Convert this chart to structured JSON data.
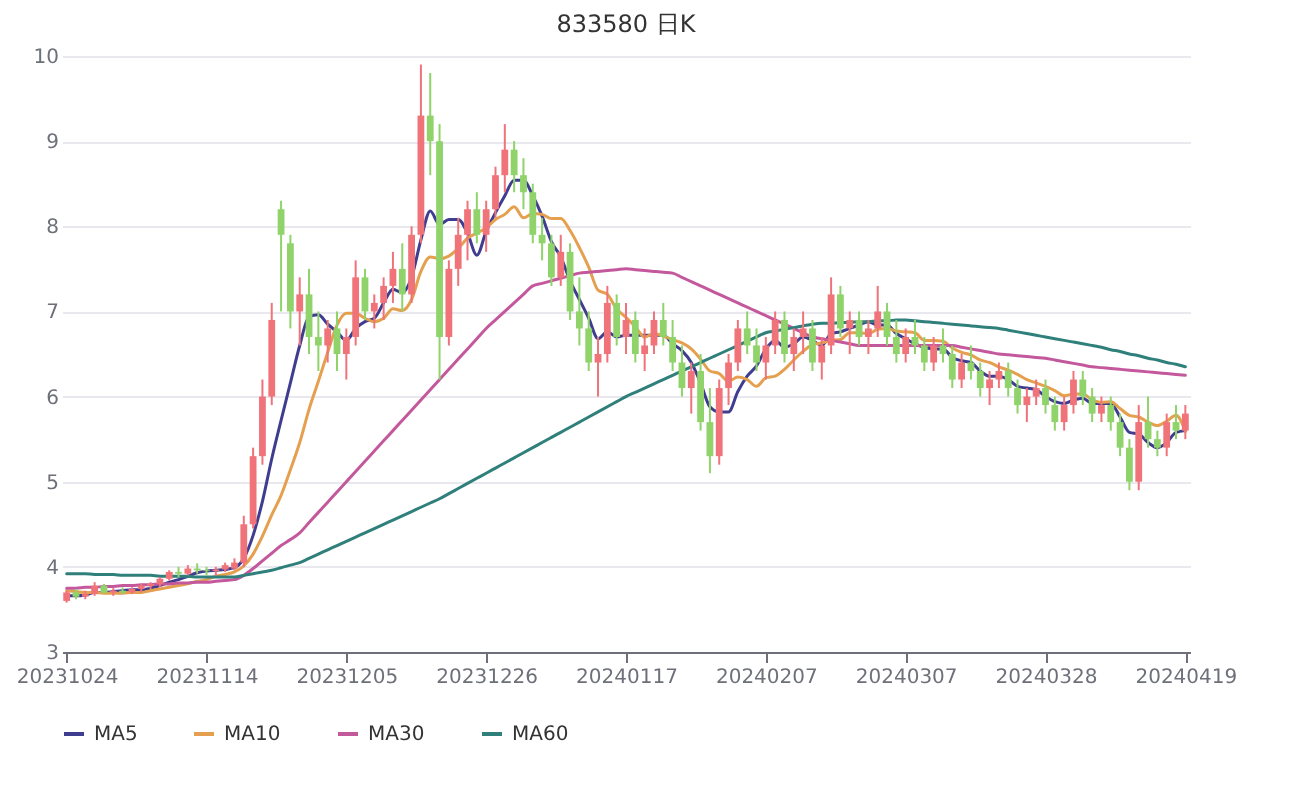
{
  "chart_data": {
    "type": "candlestick",
    "title": "833580  日K",
    "categories": [
      "20231024",
      null,
      null,
      null,
      null,
      null,
      null,
      null,
      null,
      null,
      null,
      null,
      null,
      null,
      null,
      "20231114",
      null,
      null,
      null,
      null,
      null,
      null,
      null,
      null,
      null,
      null,
      null,
      null,
      null,
      null,
      "20231205",
      null,
      null,
      null,
      null,
      null,
      null,
      null,
      null,
      null,
      null,
      null,
      null,
      null,
      null,
      "20231226",
      null,
      null,
      null,
      null,
      null,
      null,
      null,
      null,
      null,
      null,
      null,
      null,
      null,
      null,
      "20240117",
      null,
      null,
      null,
      null,
      null,
      null,
      null,
      null,
      null,
      null,
      null,
      null,
      null,
      null,
      "20240207",
      null,
      null,
      null,
      null,
      null,
      null,
      null,
      null,
      null,
      null,
      null,
      null,
      null,
      null,
      "20240307",
      null,
      null,
      null,
      null,
      null,
      null,
      null,
      null,
      null,
      null,
      null,
      null,
      null,
      null,
      "20240328",
      null,
      null,
      null,
      null,
      null,
      null,
      null,
      null,
      null,
      null,
      null,
      null,
      null,
      null,
      "20240419"
    ],
    "ohlc": [
      [
        3.6,
        3.72,
        3.58,
        3.7
      ],
      [
        3.7,
        3.74,
        3.62,
        3.65
      ],
      [
        3.65,
        3.72,
        3.62,
        3.68
      ],
      [
        3.68,
        3.82,
        3.66,
        3.78
      ],
      [
        3.78,
        3.8,
        3.68,
        3.7
      ],
      [
        3.7,
        3.75,
        3.66,
        3.72
      ],
      [
        3.72,
        3.76,
        3.68,
        3.7
      ],
      [
        3.7,
        3.76,
        3.68,
        3.74
      ],
      [
        3.74,
        3.8,
        3.7,
        3.78
      ],
      [
        3.78,
        3.82,
        3.74,
        3.8
      ],
      [
        3.8,
        3.88,
        3.76,
        3.86
      ],
      [
        3.86,
        3.96,
        3.84,
        3.94
      ],
      [
        3.94,
        4.0,
        3.88,
        3.92
      ],
      [
        3.92,
        4.02,
        3.9,
        3.98
      ],
      [
        3.98,
        4.04,
        3.92,
        3.96
      ],
      [
        3.96,
        4.0,
        3.9,
        3.95
      ],
      [
        3.95,
        4.0,
        3.9,
        3.97
      ],
      [
        3.97,
        4.05,
        3.94,
        4.02
      ],
      [
        3.98,
        4.1,
        3.96,
        4.05
      ],
      [
        4.05,
        4.6,
        4.0,
        4.5
      ],
      [
        4.5,
        5.4,
        4.45,
        5.3
      ],
      [
        5.3,
        6.2,
        5.2,
        6.0
      ],
      [
        6.0,
        7.1,
        5.9,
        6.9
      ],
      [
        8.2,
        8.3,
        7.0,
        7.9
      ],
      [
        7.8,
        7.9,
        6.8,
        7.0
      ],
      [
        7.0,
        7.4,
        6.6,
        7.2
      ],
      [
        7.2,
        7.5,
        6.5,
        6.7
      ],
      [
        6.7,
        7.0,
        6.3,
        6.6
      ],
      [
        6.6,
        6.9,
        6.4,
        6.8
      ],
      [
        6.8,
        7.0,
        6.3,
        6.5
      ],
      [
        6.5,
        6.8,
        6.2,
        6.7
      ],
      [
        6.7,
        7.6,
        6.6,
        7.4
      ],
      [
        7.4,
        7.5,
        6.9,
        7.0
      ],
      [
        7.0,
        7.2,
        6.8,
        7.1
      ],
      [
        7.1,
        7.4,
        6.9,
        7.3
      ],
      [
        7.3,
        7.7,
        7.1,
        7.5
      ],
      [
        7.5,
        7.8,
        7.0,
        7.2
      ],
      [
        7.2,
        8.0,
        7.1,
        7.9
      ],
      [
        7.9,
        9.9,
        7.8,
        9.3
      ],
      [
        9.3,
        9.8,
        8.6,
        9.0
      ],
      [
        9.0,
        9.2,
        6.2,
        6.7
      ],
      [
        6.7,
        7.6,
        6.6,
        7.5
      ],
      [
        7.5,
        8.1,
        7.3,
        7.9
      ],
      [
        7.9,
        8.3,
        7.6,
        8.2
      ],
      [
        8.2,
        8.4,
        7.8,
        7.9
      ],
      [
        7.9,
        8.3,
        7.7,
        8.2
      ],
      [
        8.2,
        8.7,
        8.1,
        8.6
      ],
      [
        8.6,
        9.2,
        8.4,
        8.9
      ],
      [
        8.9,
        9.0,
        8.4,
        8.6
      ],
      [
        8.6,
        8.8,
        8.2,
        8.4
      ],
      [
        8.4,
        8.5,
        7.8,
        7.9
      ],
      [
        7.9,
        8.1,
        7.6,
        7.8
      ],
      [
        7.8,
        7.9,
        7.3,
        7.4
      ],
      [
        7.4,
        7.9,
        7.3,
        7.7
      ],
      [
        7.7,
        7.8,
        6.9,
        7.0
      ],
      [
        7.0,
        7.4,
        6.6,
        6.8
      ],
      [
        6.8,
        7.0,
        6.3,
        6.4
      ],
      [
        6.4,
        6.7,
        6.0,
        6.5
      ],
      [
        6.5,
        7.3,
        6.4,
        7.1
      ],
      [
        7.1,
        7.2,
        6.6,
        6.7
      ],
      [
        6.7,
        7.1,
        6.5,
        6.9
      ],
      [
        6.9,
        7.0,
        6.4,
        6.5
      ],
      [
        6.5,
        6.8,
        6.3,
        6.6
      ],
      [
        6.6,
        7.0,
        6.5,
        6.9
      ],
      [
        6.9,
        7.1,
        6.6,
        6.7
      ],
      [
        6.7,
        6.9,
        6.3,
        6.4
      ],
      [
        6.4,
        6.6,
        6.0,
        6.1
      ],
      [
        6.1,
        6.4,
        5.8,
        6.3
      ],
      [
        6.3,
        6.5,
        5.6,
        5.7
      ],
      [
        5.7,
        6.1,
        5.1,
        5.3
      ],
      [
        5.3,
        6.2,
        5.2,
        6.1
      ],
      [
        6.1,
        6.5,
        5.9,
        6.4
      ],
      [
        6.4,
        6.9,
        6.3,
        6.8
      ],
      [
        6.8,
        7.0,
        6.5,
        6.6
      ],
      [
        6.6,
        6.8,
        6.3,
        6.4
      ],
      [
        6.4,
        6.7,
        6.2,
        6.6
      ],
      [
        6.6,
        7.0,
        6.5,
        6.9
      ],
      [
        6.9,
        7.0,
        6.4,
        6.5
      ],
      [
        6.5,
        6.8,
        6.3,
        6.7
      ],
      [
        6.7,
        7.0,
        6.5,
        6.8
      ],
      [
        6.8,
        6.9,
        6.3,
        6.4
      ],
      [
        6.4,
        6.7,
        6.2,
        6.6
      ],
      [
        6.6,
        7.4,
        6.5,
        7.2
      ],
      [
        7.2,
        7.3,
        6.7,
        6.8
      ],
      [
        6.8,
        7.0,
        6.5,
        6.9
      ],
      [
        6.9,
        7.0,
        6.6,
        6.7
      ],
      [
        6.7,
        6.9,
        6.5,
        6.8
      ],
      [
        6.8,
        7.3,
        6.7,
        7.0
      ],
      [
        7.0,
        7.1,
        6.6,
        6.7
      ],
      [
        6.7,
        6.9,
        6.4,
        6.5
      ],
      [
        6.5,
        6.8,
        6.4,
        6.7
      ],
      [
        6.7,
        6.9,
        6.5,
        6.6
      ],
      [
        6.6,
        6.7,
        6.3,
        6.4
      ],
      [
        6.4,
        6.7,
        6.3,
        6.6
      ],
      [
        6.6,
        6.8,
        6.4,
        6.5
      ],
      [
        6.5,
        6.6,
        6.1,
        6.2
      ],
      [
        6.2,
        6.5,
        6.1,
        6.4
      ],
      [
        6.4,
        6.6,
        6.2,
        6.3
      ],
      [
        6.3,
        6.4,
        6.0,
        6.1
      ],
      [
        6.1,
        6.3,
        5.9,
        6.2
      ],
      [
        6.2,
        6.4,
        6.1,
        6.3
      ],
      [
        6.3,
        6.4,
        6.0,
        6.1
      ],
      [
        6.1,
        6.2,
        5.8,
        5.9
      ],
      [
        5.9,
        6.1,
        5.7,
        6.0
      ],
      [
        6.0,
        6.2,
        5.9,
        6.1
      ],
      [
        6.1,
        6.2,
        5.8,
        5.9
      ],
      [
        5.9,
        6.0,
        5.6,
        5.7
      ],
      [
        5.7,
        6.0,
        5.6,
        5.9
      ],
      [
        5.9,
        6.3,
        5.8,
        6.2
      ],
      [
        6.2,
        6.3,
        5.9,
        6.0
      ],
      [
        6.0,
        6.1,
        5.7,
        5.8
      ],
      [
        5.8,
        6.0,
        5.7,
        5.9
      ],
      [
        5.9,
        6.0,
        5.6,
        5.7
      ],
      [
        5.7,
        5.8,
        5.3,
        5.4
      ],
      [
        5.4,
        5.5,
        4.9,
        5.0
      ],
      [
        5.0,
        5.9,
        4.9,
        5.7
      ],
      [
        5.7,
        6.0,
        5.4,
        5.5
      ],
      [
        5.5,
        5.6,
        5.3,
        5.4
      ],
      [
        5.4,
        5.8,
        5.3,
        5.7
      ],
      [
        5.7,
        5.9,
        5.5,
        5.6
      ],
      [
        5.6,
        5.9,
        5.5,
        5.8
      ]
    ],
    "colors": [
      "#f0737a",
      "#8fd36a",
      "#f0737a",
      "#f0737a",
      "#8fd36a",
      "#f0737a",
      "#8fd36a",
      "#f0737a",
      "#f0737a",
      "#f0737a",
      "#f0737a",
      "#f0737a",
      "#8fd36a",
      "#f0737a",
      "#8fd36a",
      "#8fd36a",
      "#f0737a",
      "#f0737a",
      "#f0737a",
      "#f0737a",
      "#f0737a",
      "#f0737a",
      "#f0737a",
      "#8fd36a",
      "#8fd36a",
      "#f0737a",
      "#8fd36a",
      "#8fd36a",
      "#f0737a",
      "#8fd36a",
      "#f0737a",
      "#f0737a",
      "#8fd36a",
      "#f0737a",
      "#f0737a",
      "#f0737a",
      "#8fd36a",
      "#f0737a",
      "#f0737a",
      "#8fd36a",
      "#8fd36a",
      "#f0737a",
      "#f0737a",
      "#f0737a",
      "#8fd36a",
      "#f0737a",
      "#f0737a",
      "#f0737a",
      "#8fd36a",
      "#8fd36a",
      "#8fd36a",
      "#8fd36a",
      "#8fd36a",
      "#f0737a",
      "#8fd36a",
      "#8fd36a",
      "#8fd36a",
      "#f0737a",
      "#f0737a",
      "#8fd36a",
      "#f0737a",
      "#8fd36a",
      "#f0737a",
      "#f0737a",
      "#8fd36a",
      "#8fd36a",
      "#8fd36a",
      "#f0737a",
      "#8fd36a",
      "#8fd36a",
      "#f0737a",
      "#f0737a",
      "#f0737a",
      "#8fd36a",
      "#8fd36a",
      "#f0737a",
      "#f0737a",
      "#8fd36a",
      "#f0737a",
      "#f0737a",
      "#8fd36a",
      "#f0737a",
      "#f0737a",
      "#8fd36a",
      "#f0737a",
      "#8fd36a",
      "#f0737a",
      "#f0737a",
      "#8fd36a",
      "#8fd36a",
      "#f0737a",
      "#8fd36a",
      "#8fd36a",
      "#f0737a",
      "#8fd36a",
      "#8fd36a",
      "#f0737a",
      "#8fd36a",
      "#8fd36a",
      "#f0737a",
      "#f0737a",
      "#8fd36a",
      "#8fd36a",
      "#f0737a",
      "#f0737a",
      "#8fd36a",
      "#8fd36a",
      "#f0737a",
      "#f0737a",
      "#8fd36a",
      "#8fd36a",
      "#f0737a",
      "#8fd36a",
      "#8fd36a",
      "#8fd36a",
      "#f0737a",
      "#8fd36a",
      "#8fd36a",
      "#f0737a",
      "#8fd36a",
      "#f0737a"
    ],
    "series": [
      {
        "name": "MA5",
        "type": "line",
        "color": "#3f3d8f",
        "values": [
          3.66,
          3.66,
          3.67,
          3.7,
          3.7,
          3.71,
          3.72,
          3.73,
          3.73,
          3.75,
          3.78,
          3.82,
          3.85,
          3.89,
          3.93,
          3.95,
          3.96,
          3.97,
          3.99,
          4.1,
          4.37,
          4.77,
          5.27,
          5.72,
          6.16,
          6.6,
          6.94,
          6.96,
          6.85,
          6.76,
          6.66,
          6.8,
          6.88,
          6.92,
          7.1,
          7.26,
          7.22,
          7.4,
          7.84,
          8.18,
          8.02,
          8.08,
          8.08,
          7.92,
          7.66,
          7.94,
          8.16,
          8.36,
          8.54,
          8.54,
          8.36,
          8.12,
          7.82,
          7.64,
          7.36,
          7.14,
          6.92,
          6.68,
          6.76,
          6.7,
          6.72,
          6.72,
          6.72,
          6.72,
          6.72,
          6.62,
          6.54,
          6.4,
          6.16,
          5.88,
          5.82,
          5.82,
          6.06,
          6.24,
          6.36,
          6.56,
          6.66,
          6.58,
          6.62,
          6.7,
          6.66,
          6.6,
          6.74,
          6.76,
          6.8,
          6.84,
          6.88,
          6.84,
          6.84,
          6.74,
          6.68,
          6.62,
          6.58,
          6.56,
          6.56,
          6.46,
          6.42,
          6.4,
          6.3,
          6.24,
          6.24,
          6.2,
          6.12,
          6.1,
          6.08,
          6.0,
          5.94,
          5.92,
          5.96,
          5.98,
          5.92,
          5.92,
          5.92,
          5.76,
          5.58,
          5.56,
          5.46,
          5.4,
          5.46,
          5.58,
          5.6
        ]
      },
      {
        "name": "MA10",
        "type": "line",
        "color": "#e5a04f",
        "values": [
          3.72,
          3.71,
          3.7,
          3.7,
          3.69,
          3.69,
          3.69,
          3.7,
          3.7,
          3.72,
          3.74,
          3.76,
          3.78,
          3.8,
          3.83,
          3.85,
          3.89,
          3.91,
          3.94,
          4.01,
          4.15,
          4.36,
          4.61,
          4.84,
          5.14,
          5.46,
          5.85,
          6.18,
          6.52,
          6.84,
          6.98,
          6.98,
          6.92,
          6.88,
          6.92,
          7.03,
          7.01,
          7.14,
          7.47,
          7.64,
          7.62,
          7.65,
          7.74,
          7.86,
          7.92,
          7.98,
          8.08,
          8.14,
          8.23,
          8.1,
          8.15,
          8.14,
          8.09,
          8.09,
          7.95,
          7.75,
          7.52,
          7.25,
          7.2,
          7.03,
          6.93,
          6.82,
          6.7,
          6.74,
          6.71,
          6.67,
          6.63,
          6.56,
          6.44,
          6.3,
          6.27,
          6.18,
          6.23,
          6.2,
          6.12,
          6.22,
          6.24,
          6.32,
          6.43,
          6.53,
          6.61,
          6.63,
          6.66,
          6.67,
          6.75,
          6.75,
          6.74,
          6.79,
          6.8,
          6.77,
          6.76,
          6.75,
          6.66,
          6.66,
          6.65,
          6.57,
          6.52,
          6.49,
          6.43,
          6.4,
          6.35,
          6.31,
          6.26,
          6.2,
          6.16,
          6.12,
          6.07,
          6.01,
          6.03,
          6.03,
          5.96,
          5.93,
          5.94,
          5.86,
          5.78,
          5.76,
          5.7,
          5.66,
          5.71,
          5.78,
          5.59
        ]
      },
      {
        "name": "MA30",
        "type": "line",
        "color": "#c4589c",
        "values": [
          3.75,
          3.75,
          3.76,
          3.76,
          3.77,
          3.77,
          3.78,
          3.78,
          3.79,
          3.79,
          3.8,
          3.8,
          3.81,
          3.81,
          3.82,
          3.82,
          3.83,
          3.84,
          3.85,
          3.9,
          3.98,
          4.07,
          4.16,
          4.25,
          4.32,
          4.4,
          4.52,
          4.64,
          4.76,
          4.88,
          5.0,
          5.12,
          5.24,
          5.36,
          5.48,
          5.6,
          5.72,
          5.84,
          5.96,
          6.08,
          6.2,
          6.32,
          6.44,
          6.56,
          6.68,
          6.8,
          6.9,
          7.0,
          7.1,
          7.2,
          7.3,
          7.33,
          7.36,
          7.39,
          7.42,
          7.45,
          7.46,
          7.47,
          7.48,
          7.49,
          7.5,
          7.49,
          7.48,
          7.47,
          7.46,
          7.45,
          7.4,
          7.35,
          7.3,
          7.25,
          7.2,
          7.15,
          7.1,
          7.05,
          7.0,
          6.95,
          6.9,
          6.85,
          6.8,
          6.75,
          6.7,
          6.68,
          6.66,
          6.64,
          6.62,
          6.6,
          6.6,
          6.6,
          6.6,
          6.6,
          6.6,
          6.6,
          6.6,
          6.6,
          6.6,
          6.6,
          6.58,
          6.56,
          6.54,
          6.52,
          6.5,
          6.49,
          6.48,
          6.47,
          6.46,
          6.45,
          6.43,
          6.41,
          6.39,
          6.37,
          6.35,
          6.34,
          6.33,
          6.32,
          6.31,
          6.3,
          6.29,
          6.28,
          6.27,
          6.26,
          6.25
        ]
      },
      {
        "name": "MA60",
        "type": "line",
        "color": "#2f7f7b",
        "values": [
          3.92,
          3.92,
          3.92,
          3.91,
          3.91,
          3.91,
          3.9,
          3.9,
          3.9,
          3.9,
          3.89,
          3.89,
          3.89,
          3.89,
          3.88,
          3.88,
          3.88,
          3.88,
          3.88,
          3.9,
          3.92,
          3.94,
          3.96,
          3.99,
          4.02,
          4.05,
          4.1,
          4.15,
          4.2,
          4.25,
          4.3,
          4.35,
          4.4,
          4.45,
          4.5,
          4.55,
          4.6,
          4.65,
          4.7,
          4.75,
          4.8,
          4.86,
          4.92,
          4.98,
          5.04,
          5.1,
          5.16,
          5.22,
          5.28,
          5.34,
          5.4,
          5.46,
          5.52,
          5.58,
          5.64,
          5.7,
          5.76,
          5.82,
          5.88,
          5.94,
          6.0,
          6.05,
          6.1,
          6.15,
          6.2,
          6.25,
          6.3,
          6.35,
          6.4,
          6.45,
          6.5,
          6.55,
          6.6,
          6.65,
          6.7,
          6.75,
          6.77,
          6.79,
          6.81,
          6.83,
          6.85,
          6.86,
          6.86,
          6.87,
          6.87,
          6.88,
          6.88,
          6.89,
          6.89,
          6.9,
          6.9,
          6.89,
          6.88,
          6.87,
          6.86,
          6.85,
          6.84,
          6.83,
          6.82,
          6.81,
          6.8,
          6.78,
          6.76,
          6.74,
          6.72,
          6.7,
          6.68,
          6.66,
          6.64,
          6.62,
          6.6,
          6.58,
          6.55,
          6.53,
          6.5,
          6.48,
          6.45,
          6.43,
          6.4,
          6.38,
          6.35
        ]
      }
    ],
    "ylim": [
      3,
      10
    ],
    "yticks": [
      3,
      4,
      5,
      6,
      7,
      8,
      9,
      10
    ],
    "grid": "y",
    "legend": "bottom"
  }
}
